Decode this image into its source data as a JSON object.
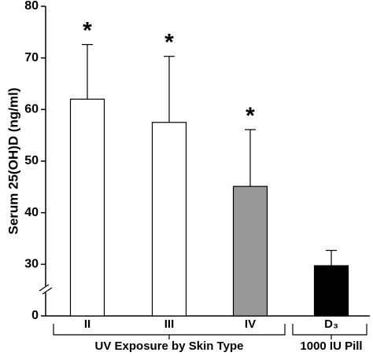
{
  "chart_data": {
    "type": "bar",
    "y_label": "Serum 25(OH)D (ng/ml)",
    "categories": [
      "II",
      "III",
      "IV",
      "D₃"
    ],
    "values": [
      62,
      57.5,
      45.1,
      29.2
    ],
    "errors": [
      10.6,
      12.8,
      11,
      3.5
    ],
    "colors": [
      "#ffffff",
      "#ffffff",
      "#999999",
      "#000000"
    ],
    "significance": [
      "*",
      "*",
      "*",
      null
    ],
    "groups": [
      "UV Exposure by Skin Type",
      "1000 IU Pill"
    ],
    "ylim": [
      0,
      80
    ],
    "yticks": [
      0,
      30,
      40,
      50,
      60,
      70,
      80
    ],
    "axis_break": true
  }
}
